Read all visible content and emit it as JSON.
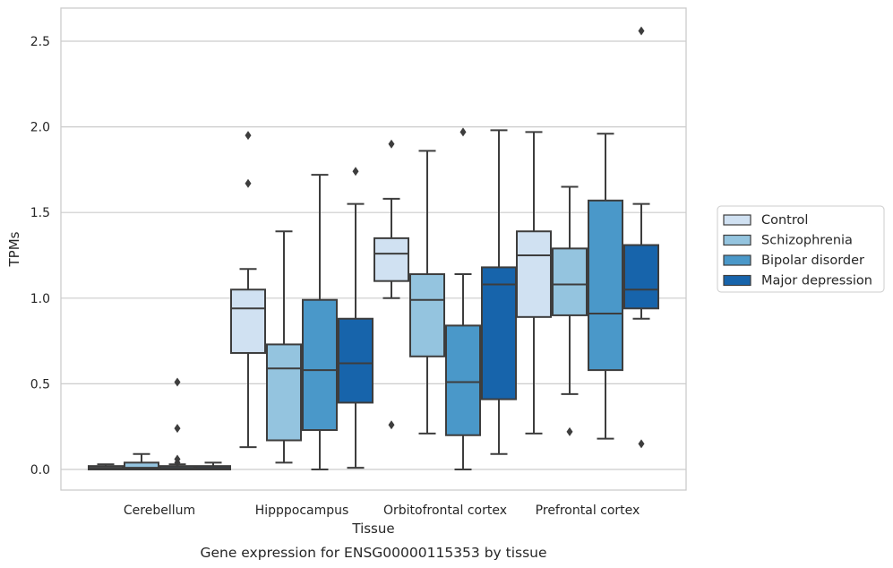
{
  "chart_data": {
    "type": "box",
    "caption": "Gene expression for ENSG00000115353 by tissue",
    "xlabel": "Tissue",
    "ylabel": "TPMs",
    "ylim": [
      -0.12,
      2.7
    ],
    "yticks": [
      0.0,
      0.5,
      1.0,
      1.5,
      2.0,
      2.5
    ],
    "ytick_labels": [
      "0.0",
      "0.5",
      "1.0",
      "1.5",
      "2.0",
      "2.5"
    ],
    "grid": "horizontal",
    "legend_position": "right",
    "categories": [
      "Cerebellum",
      "Hipppocampus",
      "Orbitofrontal cortex",
      "Prefrontal cortex"
    ],
    "series": [
      {
        "name": "Control",
        "color": "#d0e1f2",
        "boxes": [
          {
            "whisker_low": 0.0,
            "q1": 0.0,
            "median": 0.01,
            "q3": 0.02,
            "whisker_high": 0.03,
            "outliers": []
          },
          {
            "whisker_low": 0.13,
            "q1": 0.68,
            "median": 0.94,
            "q3": 1.05,
            "whisker_high": 1.17,
            "outliers": [
              1.67,
              1.95
            ]
          },
          {
            "whisker_low": 1.0,
            "q1": 1.1,
            "median": 1.26,
            "q3": 1.35,
            "whisker_high": 1.58,
            "outliers": [
              0.26,
              1.9
            ]
          },
          {
            "whisker_low": 0.21,
            "q1": 0.89,
            "median": 1.25,
            "q3": 1.39,
            "whisker_high": 1.97,
            "outliers": []
          }
        ]
      },
      {
        "name": "Schizophrenia",
        "color": "#94c4df",
        "boxes": [
          {
            "whisker_low": 0.0,
            "q1": 0.0,
            "median": 0.01,
            "q3": 0.04,
            "whisker_high": 0.09,
            "outliers": []
          },
          {
            "whisker_low": 0.04,
            "q1": 0.17,
            "median": 0.59,
            "q3": 0.73,
            "whisker_high": 1.39,
            "outliers": []
          },
          {
            "whisker_low": 0.21,
            "q1": 0.66,
            "median": 0.99,
            "q3": 1.14,
            "whisker_high": 1.86,
            "outliers": []
          },
          {
            "whisker_low": 0.44,
            "q1": 0.9,
            "median": 1.08,
            "q3": 1.29,
            "whisker_high": 1.65,
            "outliers": [
              0.22
            ]
          }
        ]
      },
      {
        "name": "Bipolar disorder",
        "color": "#4a98c9",
        "boxes": [
          {
            "whisker_low": 0.0,
            "q1": 0.0,
            "median": 0.01,
            "q3": 0.02,
            "whisker_high": 0.03,
            "outliers": [
              0.04,
              0.06,
              0.24,
              0.51
            ]
          },
          {
            "whisker_low": 0.0,
            "q1": 0.23,
            "median": 0.58,
            "q3": 0.99,
            "whisker_high": 1.72,
            "outliers": []
          },
          {
            "whisker_low": 0.0,
            "q1": 0.2,
            "median": 0.51,
            "q3": 0.84,
            "whisker_high": 1.14,
            "outliers": [
              1.97
            ]
          },
          {
            "whisker_low": 0.18,
            "q1": 0.58,
            "median": 0.91,
            "q3": 1.57,
            "whisker_high": 1.96,
            "outliers": []
          }
        ]
      },
      {
        "name": "Major depression",
        "color": "#1764ab",
        "boxes": [
          {
            "whisker_low": 0.0,
            "q1": 0.0,
            "median": 0.01,
            "q3": 0.02,
            "whisker_high": 0.04,
            "outliers": []
          },
          {
            "whisker_low": 0.01,
            "q1": 0.39,
            "median": 0.62,
            "q3": 0.88,
            "whisker_high": 1.55,
            "outliers": [
              1.74
            ]
          },
          {
            "whisker_low": 0.09,
            "q1": 0.41,
            "median": 1.08,
            "q3": 1.18,
            "whisker_high": 1.98,
            "outliers": []
          },
          {
            "whisker_low": 0.88,
            "q1": 0.94,
            "median": 1.05,
            "q3": 1.31,
            "whisker_high": 1.55,
            "outliers": [
              0.15,
              2.56
            ]
          }
        ]
      }
    ]
  }
}
